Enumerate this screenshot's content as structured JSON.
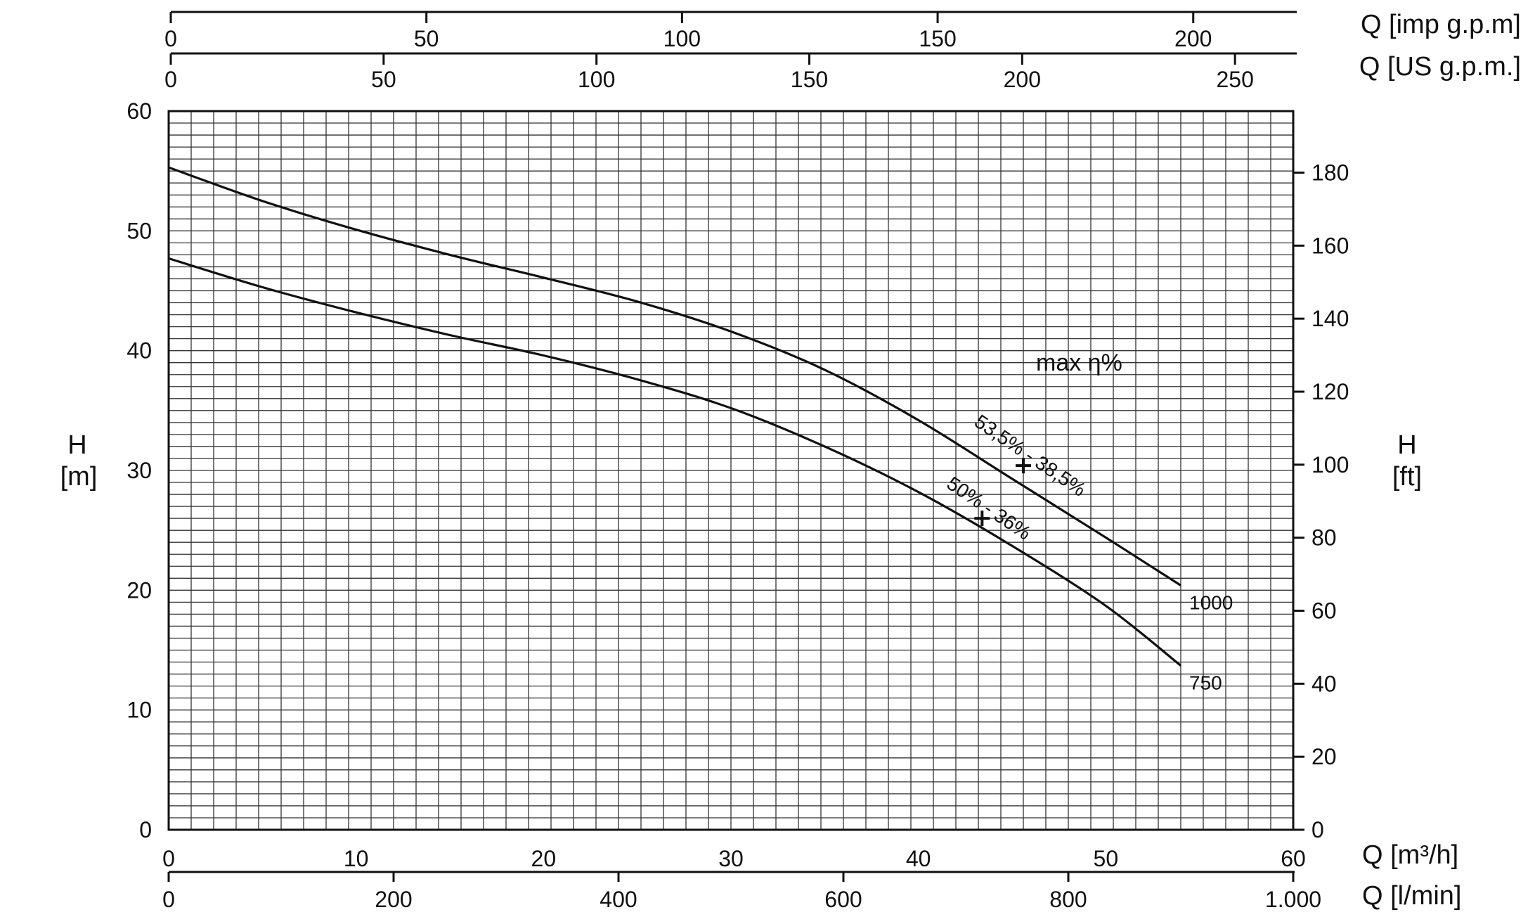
{
  "chart_data": {
    "type": "line",
    "axes": {
      "x_bottom_primary": {
        "label": "Q [m³/h]",
        "unit": "m³/h",
        "range": [
          0,
          60
        ],
        "ticks": [
          "0",
          "10",
          "20",
          "30",
          "40",
          "50",
          "60"
        ]
      },
      "x_bottom_secondary": {
        "label": "Q [l/min]",
        "unit": "l/min",
        "range": [
          0,
          1000
        ],
        "ticks": [
          "0",
          "200",
          "400",
          "600",
          "800",
          "1.000"
        ]
      },
      "x_top_secondary": {
        "label": "Q [US g.p.m.]",
        "unit": "US g.p.m.",
        "ticks": [
          "0",
          "50",
          "100",
          "150",
          "200",
          "250"
        ]
      },
      "x_top_primary": {
        "label": "Q [imp g.p.m]",
        "unit": "imp g.p.m",
        "ticks": [
          "0",
          "50",
          "100",
          "150",
          "200"
        ]
      },
      "y_left": {
        "label_line1": "H",
        "label_line2": "[m]",
        "unit": "m",
        "range": [
          0,
          60
        ],
        "ticks": [
          "0",
          "10",
          "20",
          "30",
          "40",
          "50",
          "60"
        ]
      },
      "y_right": {
        "label_line1": "H",
        "label_line2": "[ft]",
        "unit": "ft",
        "ticks": [
          "0",
          "20",
          "40",
          "60",
          "80",
          "100",
          "120",
          "140",
          "160",
          "180"
        ]
      }
    },
    "grid": true,
    "series": [
      {
        "name": "1000",
        "x": [
          0,
          5,
          10,
          15,
          20,
          25,
          30,
          35,
          40,
          45,
          50,
          54
        ],
        "y": [
          55.3,
          52.5,
          50.1,
          48.0,
          46.1,
          44.1,
          41.6,
          38.4,
          34.2,
          29.3,
          24.4,
          20.4
        ]
      },
      {
        "name": "750",
        "x": [
          0,
          5,
          10,
          15,
          20,
          25,
          30,
          35,
          40,
          45,
          50,
          54
        ],
        "y": [
          47.7,
          45.3,
          43.2,
          41.3,
          39.6,
          37.6,
          35.2,
          32.0,
          28.2,
          23.7,
          18.7,
          13.7
        ]
      }
    ],
    "efficiency": {
      "header": "max η%",
      "points": [
        {
          "curve": "1000",
          "x": 45.6,
          "y": 30.4,
          "label": "53,5% - 38,5%"
        },
        {
          "curve": "750",
          "x": 43.4,
          "y": 26.0,
          "label": "50% - 36%"
        }
      ]
    }
  }
}
